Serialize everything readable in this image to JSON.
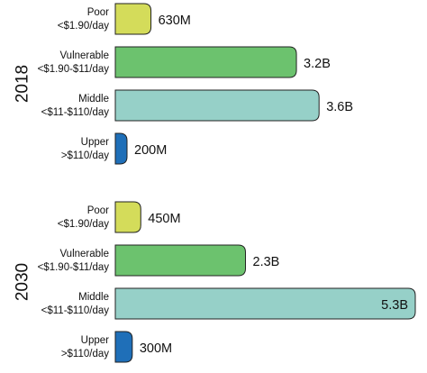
{
  "chart_data": {
    "type": "bar",
    "orientation": "horizontal",
    "colors": {
      "Poor": "#d4dc5a",
      "Vulnerable": "#6cc26e",
      "Middle": "#96d0c8",
      "Upper": "#1f6fb8",
      "stroke": "#222222"
    },
    "groups": [
      {
        "year": "2018",
        "bars": [
          {
            "name": "Poor",
            "threshold": "<$1.90/day",
            "label": "630M",
            "value_millions": 630
          },
          {
            "name": "Vulnerable",
            "threshold": "<$1.90-$11/day",
            "label": "3.2B",
            "value_millions": 3200
          },
          {
            "name": "Middle",
            "threshold": "<$11-$110/day",
            "label": "3.6B",
            "value_millions": 3600
          },
          {
            "name": "Upper",
            "threshold": ">$110/day",
            "label": "200M",
            "value_millions": 200
          }
        ]
      },
      {
        "year": "2030",
        "bars": [
          {
            "name": "Poor",
            "threshold": "<$1.90/day",
            "label": "450M",
            "value_millions": 450
          },
          {
            "name": "Vulnerable",
            "threshold": "<$1.90-$11/day",
            "label": "2.3B",
            "value_millions": 2300
          },
          {
            "name": "Middle",
            "threshold": "<$11-$110/day",
            "label": "5.3B",
            "value_millions": 5300,
            "label_inside": true
          },
          {
            "name": "Upper",
            "threshold": ">$110/day",
            "label": "300M",
            "value_millions": 300
          }
        ]
      }
    ]
  }
}
